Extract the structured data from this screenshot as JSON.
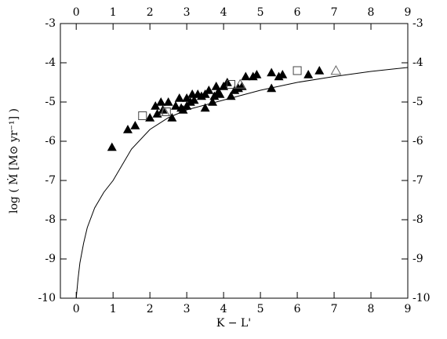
{
  "chart_data": {
    "type": "scatter",
    "xlabel": "K − L'",
    "ylabel": "log ( Ṁ  [M⊙ yr⁻¹] )",
    "xlim": [
      -0.43,
      9
    ],
    "ylim": [
      -10,
      -3
    ],
    "xticks": [
      0,
      1,
      2,
      3,
      4,
      5,
      6,
      7,
      8,
      9
    ],
    "yticks": [
      -3,
      -4,
      -5,
      -6,
      -7,
      -8,
      -9,
      -10
    ],
    "mirror_axes": true,
    "color": "#000000",
    "series": [
      {
        "marker": "triangle-filled",
        "x": [
          0.97,
          1.4,
          1.6,
          2.0,
          2.15,
          2.2,
          2.3,
          2.35,
          2.5,
          2.6,
          2.7,
          2.8,
          2.85,
          2.9,
          3.0,
          3.0,
          3.1,
          3.15,
          3.2,
          3.3,
          3.4,
          3.5,
          3.5,
          3.6,
          3.7,
          3.75,
          3.8,
          3.85,
          3.9,
          4.0,
          4.1,
          4.2,
          4.3,
          4.4,
          4.5,
          4.6,
          4.8,
          4.9,
          5.3,
          5.3,
          5.5,
          5.6,
          6.3,
          6.6
        ],
        "y": [
          -6.15,
          -5.7,
          -5.6,
          -5.4,
          -5.1,
          -5.3,
          -5.0,
          -5.2,
          -5.0,
          -5.4,
          -5.1,
          -4.9,
          -5.15,
          -5.2,
          -4.9,
          -5.1,
          -5.0,
          -4.8,
          -4.95,
          -4.8,
          -4.85,
          -5.15,
          -4.8,
          -4.7,
          -5.0,
          -4.85,
          -4.6,
          -4.75,
          -4.8,
          -4.6,
          -4.5,
          -4.85,
          -4.7,
          -4.65,
          -4.6,
          -4.35,
          -4.35,
          -4.3,
          -4.25,
          -4.65,
          -4.35,
          -4.3,
          -4.3,
          -4.2
        ]
      },
      {
        "marker": "square-open",
        "x": [
          1.8,
          2.45,
          4.2,
          6.0
        ],
        "y": [
          -5.35,
          -5.25,
          -4.55,
          -4.2
        ]
      },
      {
        "marker": "triangle-open",
        "x": [
          2.4,
          4.45,
          7.05
        ],
        "y": [
          -5.25,
          -4.55,
          -4.2
        ]
      },
      {
        "marker": "line",
        "x": [
          0,
          0.05,
          0.1,
          0.2,
          0.3,
          0.5,
          0.75,
          1,
          1.5,
          2,
          2.5,
          3,
          4,
          5,
          6,
          7,
          8,
          9
        ],
        "y": [
          -10,
          -9.5,
          -9.1,
          -8.6,
          -8.2,
          -7.7,
          -7.3,
          -7.0,
          -6.2,
          -5.7,
          -5.4,
          -5.2,
          -4.95,
          -4.7,
          -4.5,
          -4.35,
          -4.22,
          -4.12
        ]
      }
    ]
  }
}
